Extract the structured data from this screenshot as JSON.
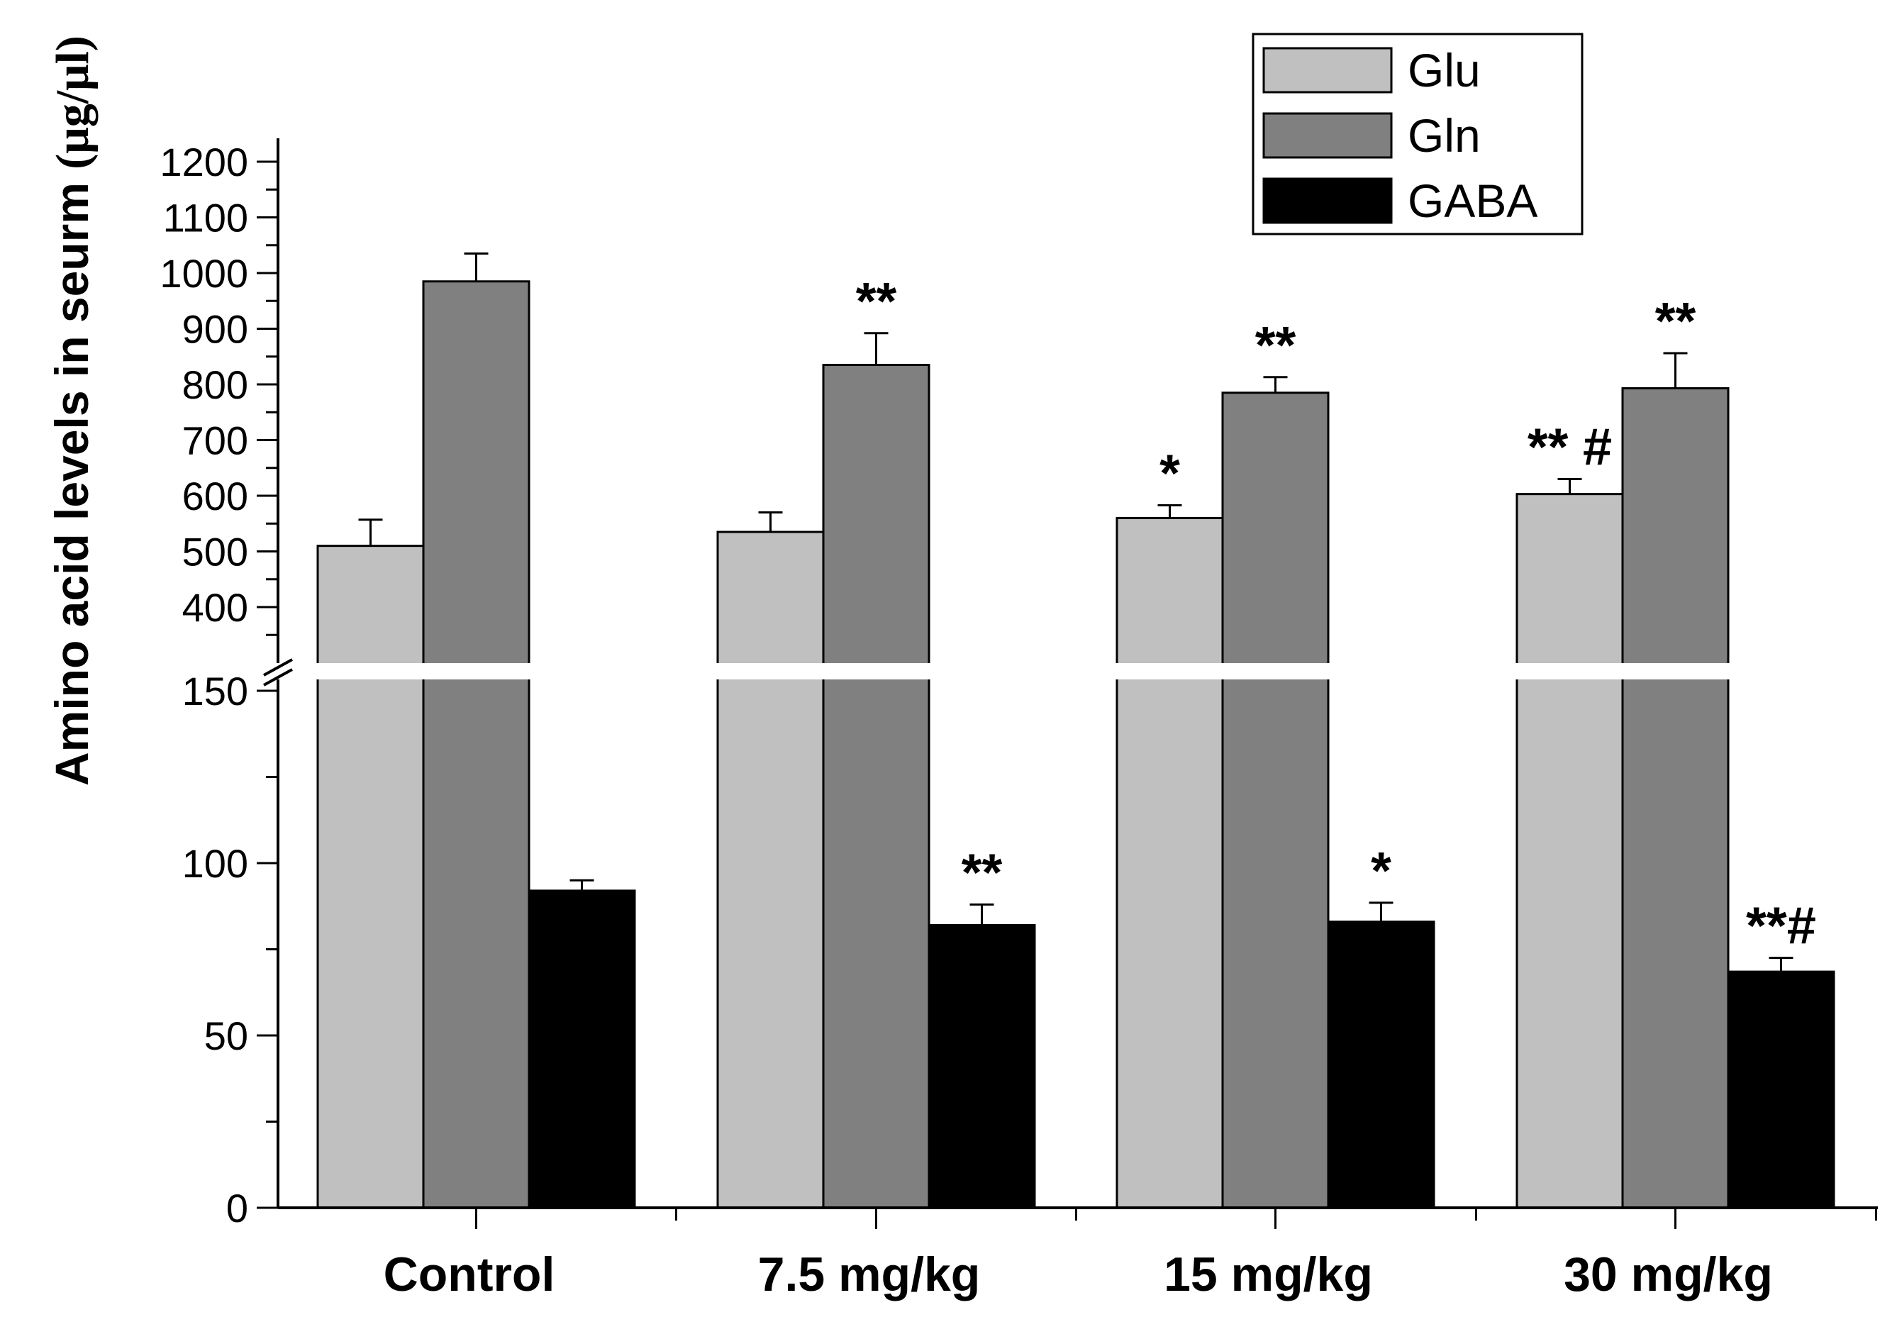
{
  "chart_data": {
    "type": "bar",
    "title": "",
    "xlabel": "",
    "ylabel": "Amino acid  levels in seurm (μg/μl)",
    "ylabel_prefix": "Amino acid  levels in seurm ",
    "ylabel_unit": "(μg/μl)",
    "categories": [
      "Control",
      "7.5 mg/kg",
      "15 mg/kg",
      "30 mg/kg"
    ],
    "series": [
      {
        "name": "Glu",
        "color": "#c0c0c0",
        "values": [
          510,
          535,
          560,
          603
        ],
        "errors": [
          47,
          35,
          23,
          27
        ]
      },
      {
        "name": "Gln",
        "color": "#808080",
        "values": [
          985,
          835,
          785,
          793
        ],
        "errors": [
          50,
          57,
          28,
          63
        ]
      },
      {
        "name": "GABA",
        "color": "#000000",
        "values": [
          92,
          82,
          83,
          68.5
        ],
        "errors": [
          3,
          6,
          5.5,
          4
        ]
      }
    ],
    "y_axis_break": {
      "lower_range": [
        0,
        150
      ],
      "upper_range": [
        350,
        1250
      ],
      "lower_ticks": [
        0,
        50,
        100,
        150
      ],
      "upper_ticks": [
        400,
        500,
        600,
        700,
        800,
        900,
        1000,
        1100,
        1200
      ],
      "lower_tick_labels": [
        "0",
        "50",
        "100",
        "150"
      ],
      "upper_tick_labels": [
        "400",
        "500",
        "600",
        "700",
        "800",
        "900",
        "1000",
        "1100",
        "1200"
      ]
    },
    "annotations": [
      {
        "category": "7.5 mg/kg",
        "series": "Gln",
        "text": "**"
      },
      {
        "category": "7.5 mg/kg",
        "series": "GABA",
        "text": "**"
      },
      {
        "category": "15 mg/kg",
        "series": "Glu",
        "text": "*"
      },
      {
        "category": "15 mg/kg",
        "series": "Gln",
        "text": "**"
      },
      {
        "category": "15 mg/kg",
        "series": "GABA",
        "text": "*"
      },
      {
        "category": "30 mg/kg",
        "series": "Glu",
        "text": "** #"
      },
      {
        "category": "30 mg/kg",
        "series": "Gln",
        "text": "**"
      },
      {
        "category": "30 mg/kg",
        "series": "GABA",
        "text": "**#"
      }
    ],
    "legend": {
      "position": "top-right",
      "entries": [
        "Glu",
        "Gln",
        "GABA"
      ]
    },
    "grid": false
  }
}
